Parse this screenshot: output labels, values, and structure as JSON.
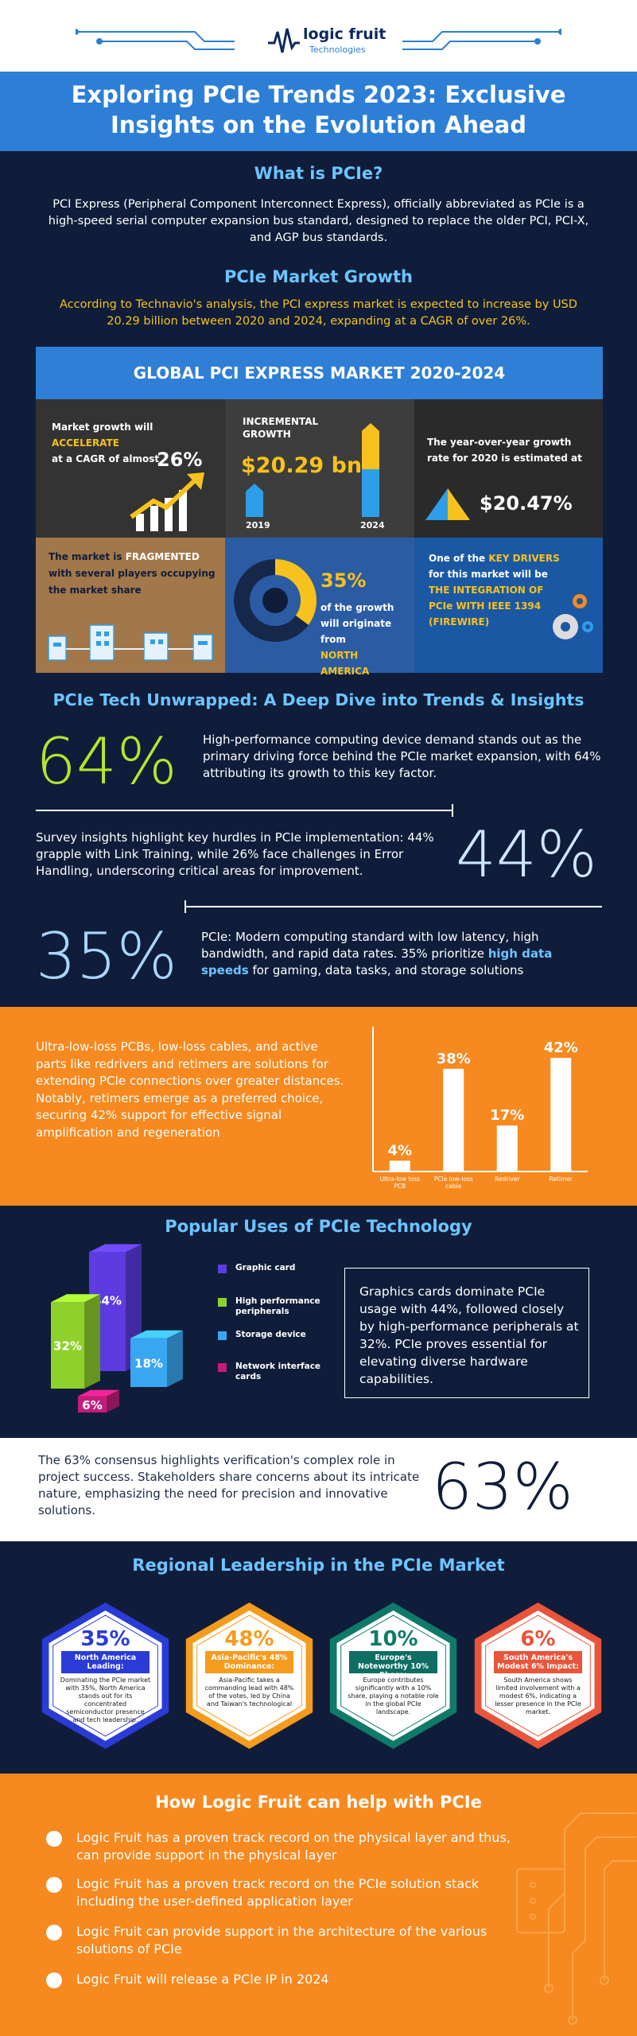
{
  "brand": {
    "name": "logic fruit",
    "sub": "Technologies"
  },
  "title": "Exploring PCIe Trends 2023: Exclusive Insights on the Evolution Ahead",
  "what_is": {
    "heading": "What is PCIe?",
    "text": "PCI Express (Peripheral Component Interconnect Express), officially abbreviated as PCIe is a high-speed serial computer expansion bus standard, designed to replace the older PCI, PCI-X, and AGP bus standards."
  },
  "market_growth": {
    "heading": "PCIe Market Growth",
    "text": "According to Technavio's analysis, the PCI express market is expected to increase by USD 20.29 billion between 2020 and 2024, expanding at a CAGR of over 26%."
  },
  "global_panel": {
    "title": "GLOBAL PCI EXPRESS MARKET 2020-2024",
    "cagr_text_1": "Market growth will ",
    "cagr_text_bold": "ACCELERATE",
    "cagr_text_2": "at a CAGR of almost",
    "cagr_value": "26%",
    "incremental_label": "INCREMENTAL GROWTH",
    "incremental_value": "$20.29 bn",
    "year_start": "2019",
    "year_end": "2024",
    "yoy_text": "The year-over-year growth rate for 2020 is estimated at",
    "yoy_value": "$20.47%",
    "fragment_text_1": "The market is ",
    "fragment_bold": "FRAGMENTED",
    "fragment_text_2": "with several players occupying the market share",
    "na_value": "35%",
    "na_text_1": "of the growth will originate from",
    "na_bold": "NORTH AMERICA",
    "na_fraction": 0.35,
    "driver_text_1": "One of the ",
    "driver_bold_1": "KEY DRIVERS",
    "driver_text_2": "for this market will be",
    "driver_bold_2": "THE INTEGRATION OF PCIe WITH IEEE 1394 (FIREWIRE)"
  },
  "deep_dive": {
    "heading": "PCIe Tech Unwrapped: A Deep Dive into Trends & Insights",
    "stat1_value": "64%",
    "stat1_text": "High-performance computing device demand stands out as the primary driving force behind the PCIe market expansion, with 64% attributing its growth to this key factor.",
    "stat2_value": "44%",
    "stat2_text": "Survey insights highlight key hurdles in PCIe implementation: 44% grapple with Link Training, while 26% face challenges in Error Handling, underscoring critical areas for improvement.",
    "stat3_value": "35%",
    "stat3_text_1": "PCIe: Modern computing standard with low latency, high bandwidth, and rapid data rates. 35% prioritize ",
    "stat3_highlight": "high data speeds",
    "stat3_text_2": " for gaming, data tasks, and storage solutions"
  },
  "signal": {
    "text": "Ultra-low-loss PCBs, low-loss cables, and active parts like redrivers and retimers are solutions for extending PCIe connections over greater distances. Notably, retimers emerge as a preferred choice, securing 42% support for effective signal amplification and regeneration"
  },
  "chart_data": [
    {
      "type": "bar",
      "categories": [
        "Ultra-low loss PCB",
        "PCIe low-loss cable",
        "Redriver",
        "Retimer"
      ],
      "values": [
        4,
        38,
        17,
        42
      ],
      "value_labels": [
        "4%",
        "38%",
        "17%",
        "42%"
      ],
      "ylim": [
        0,
        50
      ],
      "title": "",
      "xlabel": "",
      "ylabel": ""
    },
    {
      "type": "bar",
      "title": "Popular Uses of PCIe Technology",
      "categories": [
        "Graphic card",
        "High performance peripherals",
        "Storage device",
        "Network interface cards"
      ],
      "values": [
        44,
        32,
        18,
        6
      ],
      "value_labels": [
        "44%",
        "32%",
        "18%",
        "6%"
      ],
      "colors": [
        "#5c3ce0",
        "#8fd12c",
        "#39a6f2",
        "#c21d7a"
      ],
      "legend": "right"
    }
  ],
  "popular": {
    "heading": "Popular Uses of PCIe Technology",
    "text": "Graphics cards dominate PCIe usage with 44%, followed closely by high-performance peripherals at 32%. PCIe proves essential for elevating diverse hardware capabilities."
  },
  "verification": {
    "text": "The 63% consensus highlights verification's complex role in project success. Stakeholders share concerns about its intricate nature, emphasizing the need for precision and innovative solutions.",
    "value": "63%"
  },
  "regional": {
    "heading": "Regional Leadership in the PCIe Market",
    "items": [
      {
        "pct": "35%",
        "label": "North America Leading:",
        "desc": "Dominating the PCIe market with 35%, North America stands out for its concentrated semiconductor presence and tech leadership.",
        "color": "#2a3bd6",
        "label_bg": "#2a3bd6"
      },
      {
        "pct": "48%",
        "label": "Asia-Pacific's 48% Dominance:",
        "desc": "Asia-Pacific takes a commanding lead with 48% of the votes, led by China and Taiwan's technological",
        "color": "#f59b1e",
        "label_bg": "#f59b1e"
      },
      {
        "pct": "10%",
        "label": "Europe's Noteworthy 10% Share:",
        "desc": "Europe contributes significantly with a 10% share, playing a notable role in the global PCIe landscape.",
        "color": "#0f7a6a",
        "label_bg": "#0f6d63"
      },
      {
        "pct": "6%",
        "label": "South America's Modest 6% Impact:",
        "desc": "South America shows limited involvement with a modest 6%, indicating a lesser presence in the PCIe market.",
        "color": "#e8553a",
        "label_bg": "#e8553a"
      }
    ]
  },
  "help": {
    "heading": "How Logic Fruit can help with PCIe",
    "items": [
      "Logic Fruit has a proven track record on the physical layer and thus, can provide support in the physical layer",
      "Logic Fruit has a proven track record on the PCIe solution stack including the user-defined application layer",
      "Logic Fruit can provide support in the architecture of the various solutions of PCIe",
      "Logic Fruit will release a PCIe IP in 2024"
    ]
  },
  "colors": {
    "navy": "#0f1d3a",
    "blue": "#2f7fd6",
    "orange": "#f6891f",
    "light_blue": "#6dc4ff",
    "lime": "#b6e52b",
    "yellow": "#f7c21d"
  }
}
